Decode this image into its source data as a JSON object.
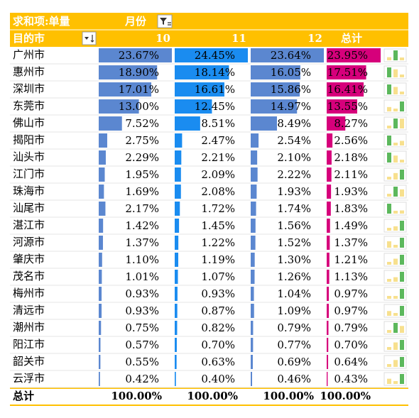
{
  "header": {
    "title": "求和项:单量",
    "column_field": "月份"
  },
  "table": {
    "row_header": "目的市",
    "columns": [
      "10",
      "11",
      "12",
      "总计"
    ],
    "bar_colors": [
      "#5b87d0",
      "#1a8cf0",
      "#5b87d0",
      "#d6007b"
    ],
    "sparkline_colors": {
      "high": "#5cb85c",
      "other": "#f7e08e"
    },
    "rows": [
      {
        "label": "广州市",
        "values": [
          23.67,
          24.45,
          23.64,
          23.95
        ],
        "value_labels": [
          "23.67%",
          "24.45%",
          "23.64%",
          "23.95%"
        ]
      },
      {
        "label": "惠州市",
        "values": [
          18.9,
          18.14,
          16.05,
          17.51
        ],
        "value_labels": [
          "18.90%",
          "18.14%",
          "16.05%",
          "17.51%"
        ]
      },
      {
        "label": "深圳市",
        "values": [
          17.01,
          16.61,
          15.86,
          16.41
        ],
        "value_labels": [
          "17.01%",
          "16.61%",
          "15.86%",
          "16.41%"
        ]
      },
      {
        "label": "东莞市",
        "values": [
          13.0,
          12.45,
          14.97,
          13.55
        ],
        "value_labels": [
          "13.00%",
          "12.45%",
          "14.97%",
          "13.55%"
        ]
      },
      {
        "label": "佛山市",
        "values": [
          7.52,
          8.51,
          8.49,
          8.27
        ],
        "value_labels": [
          "7.52%",
          "8.51%",
          "8.49%",
          "8.27%"
        ]
      },
      {
        "label": "揭阳市",
        "values": [
          2.75,
          2.47,
          2.54,
          2.56
        ],
        "value_labels": [
          "2.75%",
          "2.47%",
          "2.54%",
          "2.56%"
        ]
      },
      {
        "label": "汕头市",
        "values": [
          2.29,
          2.21,
          2.1,
          2.18
        ],
        "value_labels": [
          "2.29%",
          "2.21%",
          "2.10%",
          "2.18%"
        ]
      },
      {
        "label": "江门市",
        "values": [
          1.95,
          2.09,
          2.22,
          2.11
        ],
        "value_labels": [
          "1.95%",
          "2.09%",
          "2.22%",
          "2.11%"
        ]
      },
      {
        "label": "珠海市",
        "values": [
          1.69,
          2.08,
          1.93,
          1.93
        ],
        "value_labels": [
          "1.69%",
          "2.08%",
          "1.93%",
          "1.93%"
        ]
      },
      {
        "label": "汕尾市",
        "values": [
          2.17,
          1.72,
          1.74,
          1.83
        ],
        "value_labels": [
          "2.17%",
          "1.72%",
          "1.74%",
          "1.83%"
        ]
      },
      {
        "label": "湛江市",
        "values": [
          1.42,
          1.45,
          1.56,
          1.49
        ],
        "value_labels": [
          "1.42%",
          "1.45%",
          "1.56%",
          "1.49%"
        ]
      },
      {
        "label": "河源市",
        "values": [
          1.37,
          1.22,
          1.52,
          1.37
        ],
        "value_labels": [
          "1.37%",
          "1.22%",
          "1.52%",
          "1.37%"
        ]
      },
      {
        "label": "肇庆市",
        "values": [
          1.1,
          1.19,
          1.3,
          1.21
        ],
        "value_labels": [
          "1.10%",
          "1.19%",
          "1.30%",
          "1.21%"
        ]
      },
      {
        "label": "茂名市",
        "values": [
          1.01,
          1.07,
          1.26,
          1.13
        ],
        "value_labels": [
          "1.01%",
          "1.07%",
          "1.26%",
          "1.13%"
        ]
      },
      {
        "label": "梅州市",
        "values": [
          0.93,
          0.93,
          1.04,
          0.97
        ],
        "value_labels": [
          "0.93%",
          "0.93%",
          "1.04%",
          "0.97%"
        ]
      },
      {
        "label": "清远市",
        "values": [
          0.93,
          0.87,
          1.09,
          0.97
        ],
        "value_labels": [
          "0.93%",
          "0.87%",
          "1.09%",
          "0.97%"
        ]
      },
      {
        "label": "潮州市",
        "values": [
          0.75,
          0.82,
          0.79,
          0.79
        ],
        "value_labels": [
          "0.75%",
          "0.82%",
          "0.79%",
          "0.79%"
        ]
      },
      {
        "label": "阳江市",
        "values": [
          0.57,
          0.7,
          0.77,
          0.7
        ],
        "value_labels": [
          "0.57%",
          "0.70%",
          "0.77%",
          "0.70%"
        ]
      },
      {
        "label": "韶关市",
        "values": [
          0.55,
          0.63,
          0.69,
          0.64
        ],
        "value_labels": [
          "0.55%",
          "0.63%",
          "0.69%",
          "0.64%"
        ]
      },
      {
        "label": "云浮市",
        "values": [
          0.42,
          0.4,
          0.46,
          0.43
        ],
        "value_labels": [
          "0.42%",
          "0.40%",
          "0.46%",
          "0.43%"
        ]
      }
    ],
    "total": {
      "label": "总计",
      "values": [
        100,
        100,
        100,
        100
      ],
      "value_labels": [
        "100.00%",
        "100.00%",
        "100.00%",
        "100.00%"
      ]
    }
  }
}
